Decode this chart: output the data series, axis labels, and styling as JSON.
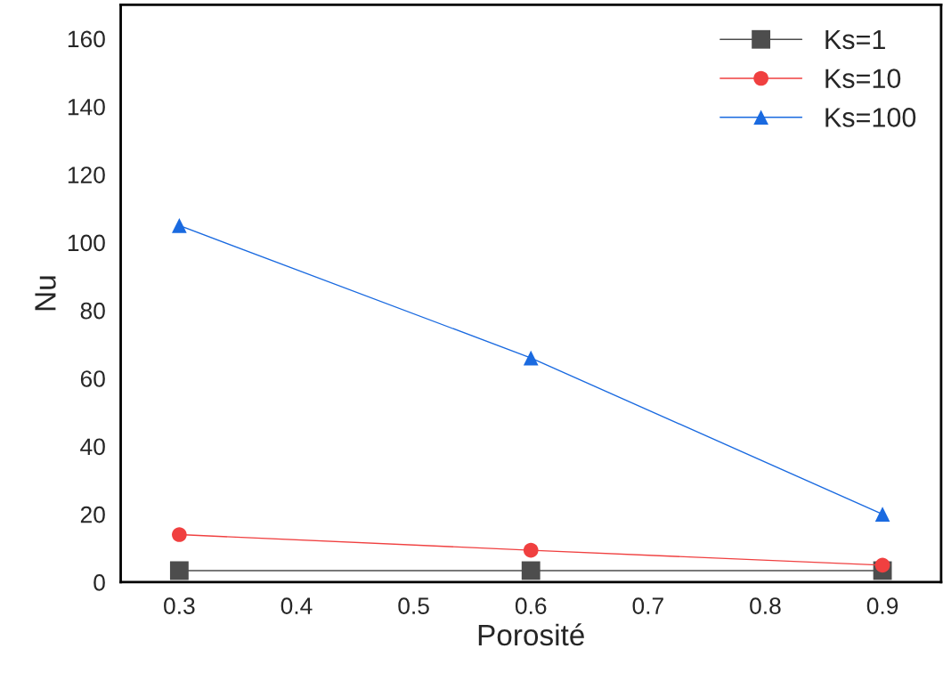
{
  "chart_data": {
    "type": "line",
    "xlabel": "Porosité",
    "ylabel": "Nu",
    "x": [
      0.3,
      0.6,
      0.9
    ],
    "series": [
      {
        "name": "Ks=1",
        "color": "#4d4d4d",
        "marker": "square",
        "values": [
          3.4,
          3.4,
          3.4
        ]
      },
      {
        "name": "Ks=10",
        "color": "#f04040",
        "marker": "circle",
        "values": [
          14,
          9.4,
          5
        ]
      },
      {
        "name": "Ks=100",
        "color": "#1a6ae0",
        "marker": "triangle",
        "values": [
          105,
          66,
          20
        ]
      }
    ],
    "xlim": [
      0.25,
      0.95
    ],
    "xticks": [
      0.3,
      0.4,
      0.5,
      0.6,
      0.7,
      0.8,
      0.9
    ],
    "ylim": [
      0,
      170
    ],
    "yticks": [
      0,
      20,
      40,
      60,
      80,
      100,
      120,
      140,
      160
    ],
    "grid": false,
    "legend": "top right",
    "line_style": "solid"
  }
}
